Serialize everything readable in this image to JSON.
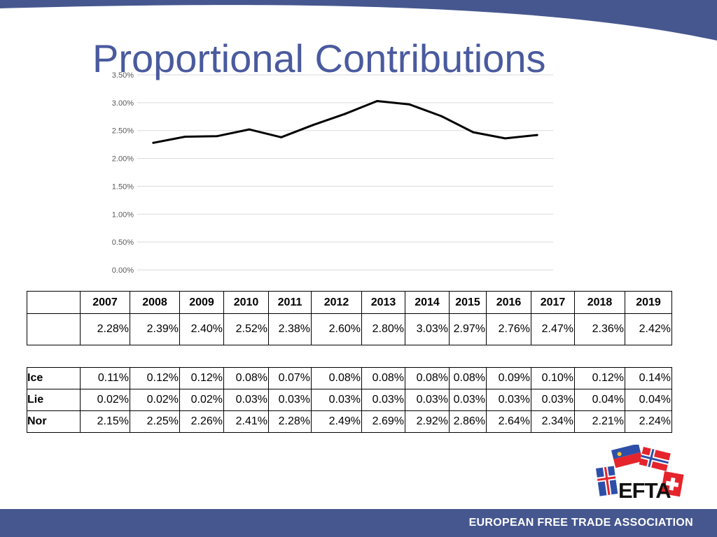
{
  "slide": {
    "title": "Proportional Contributions",
    "footer": "EUROPEAN FREE TRADE ASSOCIATION",
    "logo_text": "EFTA"
  },
  "colors": {
    "band": "#46578f",
    "title": "#4a5a9e",
    "line": "#000000",
    "grid": "#d9d9d9",
    "axis_text": "#595959"
  },
  "chart_data": {
    "type": "line",
    "title": "",
    "xlabel": "",
    "ylabel": "",
    "x": [
      "2007",
      "2008",
      "2009",
      "2010",
      "2011",
      "2012",
      "2013",
      "2014",
      "2015",
      "2016",
      "2017",
      "2018",
      "2019"
    ],
    "series": [
      {
        "values": [
          2.28,
          2.39,
          2.4,
          2.52,
          2.38,
          2.6,
          2.8,
          3.03,
          2.97,
          2.76,
          2.47,
          2.36,
          2.42
        ]
      }
    ],
    "y_ticks": [
      "0.00%",
      "0.50%",
      "1.00%",
      "1.50%",
      "2.00%",
      "2.50%",
      "3.00%",
      "3.50%"
    ],
    "ylim": [
      0,
      3.5
    ],
    "grid": true,
    "legend": "none",
    "show_x_tick_labels": false
  },
  "year_table": {
    "years": [
      "2007",
      "2008",
      "2009",
      "2010",
      "2011",
      "2012",
      "2013",
      "2014",
      "2015",
      "2016",
      "2017",
      "2018",
      "2019"
    ],
    "totals": [
      "2.28%",
      "2.39%",
      "2.40%",
      "2.52%",
      "2.38%",
      "2.60%",
      "2.80%",
      "3.03%",
      "2.97%",
      "2.76%",
      "2.47%",
      "2.36%",
      "2.42%"
    ]
  },
  "country_table": {
    "rows": [
      {
        "code": "Ice",
        "values": [
          "0.11%",
          "0.12%",
          "0.12%",
          "0.08%",
          "0.07%",
          "0.08%",
          "0.08%",
          "0.08%",
          "0.08%",
          "0.09%",
          "0.10%",
          "0.12%",
          "0.14%"
        ]
      },
      {
        "code": "Lie",
        "values": [
          "0.02%",
          "0.02%",
          "0.02%",
          "0.03%",
          "0.03%",
          "0.03%",
          "0.03%",
          "0.03%",
          "0.03%",
          "0.03%",
          "0.03%",
          "0.04%",
          "0.04%"
        ]
      },
      {
        "code": "Nor",
        "values": [
          "2.15%",
          "2.25%",
          "2.26%",
          "2.41%",
          "2.28%",
          "2.49%",
          "2.69%",
          "2.92%",
          "2.86%",
          "2.64%",
          "2.34%",
          "2.21%",
          "2.24%"
        ]
      }
    ]
  }
}
